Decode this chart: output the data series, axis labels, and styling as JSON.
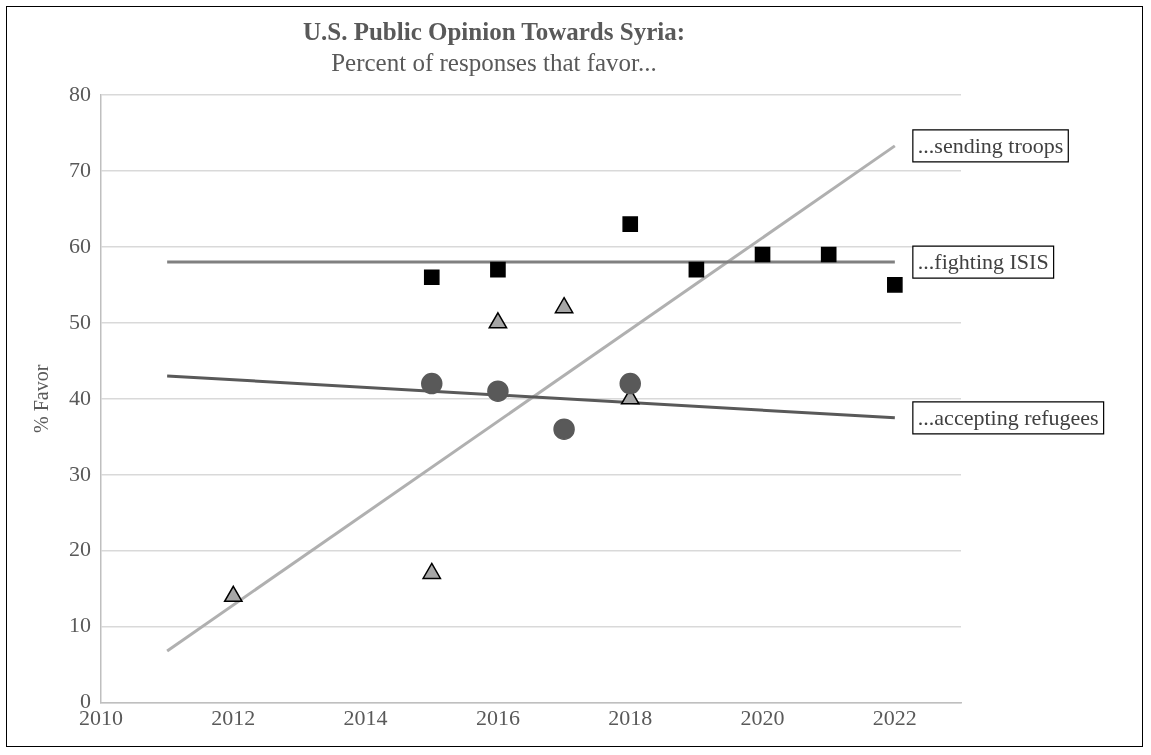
{
  "chart_data": {
    "type": "scatter",
    "title": "U.S. Public Opinion Towards Syria:",
    "subtitle": "Percent of responses that favor...",
    "ylabel": "% Favor",
    "xlim": [
      2010,
      2023
    ],
    "xticks": [
      2010,
      2012,
      2014,
      2016,
      2018,
      2020,
      2022
    ],
    "ylim": [
      0,
      80
    ],
    "yticks": [
      0,
      10,
      20,
      30,
      40,
      50,
      60,
      70,
      80
    ],
    "grid": "y",
    "legend": false,
    "series": [
      {
        "type": "scatter",
        "marker": "square",
        "color": "#000000",
        "x": [
          2015,
          2016,
          2018,
          2019,
          2020,
          2021,
          2022
        ],
        "values": [
          56,
          57,
          63,
          57,
          59,
          59,
          55
        ]
      },
      {
        "type": "scatter",
        "marker": "circle",
        "color": "#595959",
        "x": [
          2015,
          2016,
          2017,
          2018
        ],
        "values": [
          42,
          41,
          36,
          42
        ]
      },
      {
        "type": "scatter",
        "marker": "triangle",
        "color": "#a6a6a6",
        "x": [
          2012,
          2015,
          2016,
          2017,
          2018
        ],
        "values": [
          14,
          17,
          50,
          52,
          40
        ]
      },
      {
        "type": "line",
        "name": "...fighting ISIS",
        "color": "#808080",
        "marker": "none",
        "x": [
          2011,
          2022
        ],
        "values": [
          58,
          58
        ]
      },
      {
        "type": "line",
        "name": "...accepting refugees",
        "color": "#595959",
        "marker": "none",
        "x": [
          2011,
          2022
        ],
        "values": [
          43,
          37.5
        ]
      },
      {
        "type": "line",
        "name": "...sending troops",
        "color": "#b0b0b0",
        "marker": "none",
        "x": [
          2011,
          2022
        ],
        "values": [
          6.8,
          73.3
        ]
      }
    ]
  }
}
